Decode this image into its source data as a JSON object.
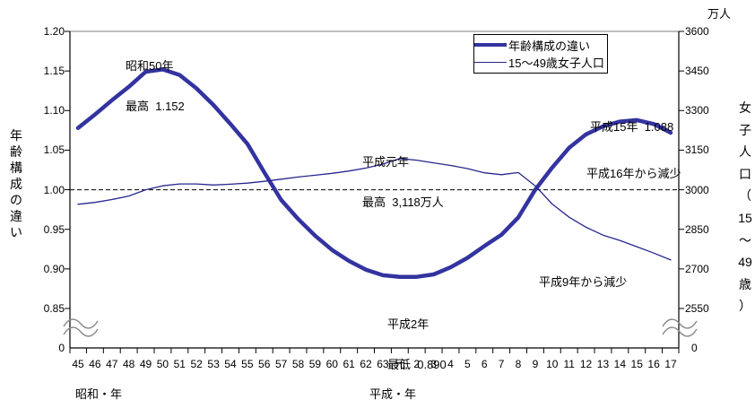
{
  "chart_data": {
    "type": "line",
    "unit_right": "万人",
    "left_axis": {
      "title": "年齢構成の違い",
      "title_lines": [
        "年",
        "齢",
        "構",
        "成",
        "の",
        "違",
        "い"
      ],
      "ticks": [
        "1.20",
        "1.15",
        "1.10",
        "1.05",
        "1.00",
        "0.95",
        "0.90",
        "0.85"
      ],
      "zero_label": "0",
      "range_note": "axis break between 0.85 and 0"
    },
    "right_axis": {
      "title": "女子人口（15～49歳）",
      "title_lines": [
        "女",
        "子",
        "人",
        "口",
        "（",
        "15",
        "～",
        "49",
        "歳",
        "）"
      ],
      "ticks": [
        "3600",
        "3450",
        "3300",
        "3150",
        "3000",
        "2850",
        "2700",
        "2550"
      ],
      "zero_label": "0",
      "range_note": "axis break between 2550 and 0"
    },
    "x_axis": {
      "categories": [
        "45",
        "46",
        "47",
        "48",
        "49",
        "50",
        "51",
        "52",
        "53",
        "54",
        "55",
        "56",
        "57",
        "58",
        "59",
        "60",
        "61",
        "62",
        "63",
        "元",
        "2",
        "3",
        "4",
        "5",
        "6",
        "7",
        "8",
        "9",
        "10",
        "11",
        "12",
        "13",
        "14",
        "15",
        "16",
        "17"
      ],
      "era_showa": "昭和・年",
      "era_heisei": "平成・年"
    },
    "reference_line": {
      "left_value": 1.0,
      "right_value": 3000,
      "style": "dashed"
    },
    "series": [
      {
        "name": "年齢構成の違い",
        "axis": "left",
        "color": "#3333A0",
        "stroke_width": 4.5,
        "values": [
          1.078,
          1.095,
          1.113,
          1.13,
          1.149,
          1.152,
          1.145,
          1.128,
          1.107,
          1.083,
          1.058,
          1.022,
          0.987,
          0.963,
          0.942,
          0.924,
          0.91,
          0.899,
          0.892,
          0.89,
          0.89,
          0.893,
          0.902,
          0.914,
          0.929,
          0.943,
          0.965,
          1.0,
          1.028,
          1.053,
          1.07,
          1.08,
          1.086,
          1.088,
          1.083,
          1.072
        ]
      },
      {
        "name": "15～49歳女子人口",
        "axis": "right",
        "color": "#26268F",
        "stroke_width": 1.3,
        "values": [
          2945,
          2952,
          2963,
          2976,
          3000,
          3015,
          3022,
          3022,
          3018,
          3021,
          3025,
          3032,
          3040,
          3048,
          3055,
          3062,
          3071,
          3082,
          3097,
          3118,
          3112,
          3102,
          3092,
          3080,
          3064,
          3057,
          3065,
          3015,
          2946,
          2896,
          2858,
          2828,
          2808,
          2784,
          2760,
          2734
        ]
      }
    ],
    "annotations": {
      "showa50": {
        "line1": "昭和50年",
        "line2": "最高  1.152"
      },
      "gannen": {
        "line1": "平成元年",
        "line2": "最高  3,118万人"
      },
      "heisei15": {
        "line1": "平成15年  1.088"
      },
      "heisei16": {
        "line1": "平成16年から減少"
      },
      "heisei9": {
        "line1": "平成9年から減少"
      },
      "heisei2": {
        "line1": "平成2年",
        "line2": "最低  0.890"
      }
    },
    "legend_position": "top-center-right",
    "grid": "off"
  },
  "colors": {
    "thick_line": "#3333A0",
    "thin_line": "#26268F",
    "top_border": "#999999",
    "axis": "#000000",
    "break_wave": "#888888",
    "background": "#ffffff"
  }
}
